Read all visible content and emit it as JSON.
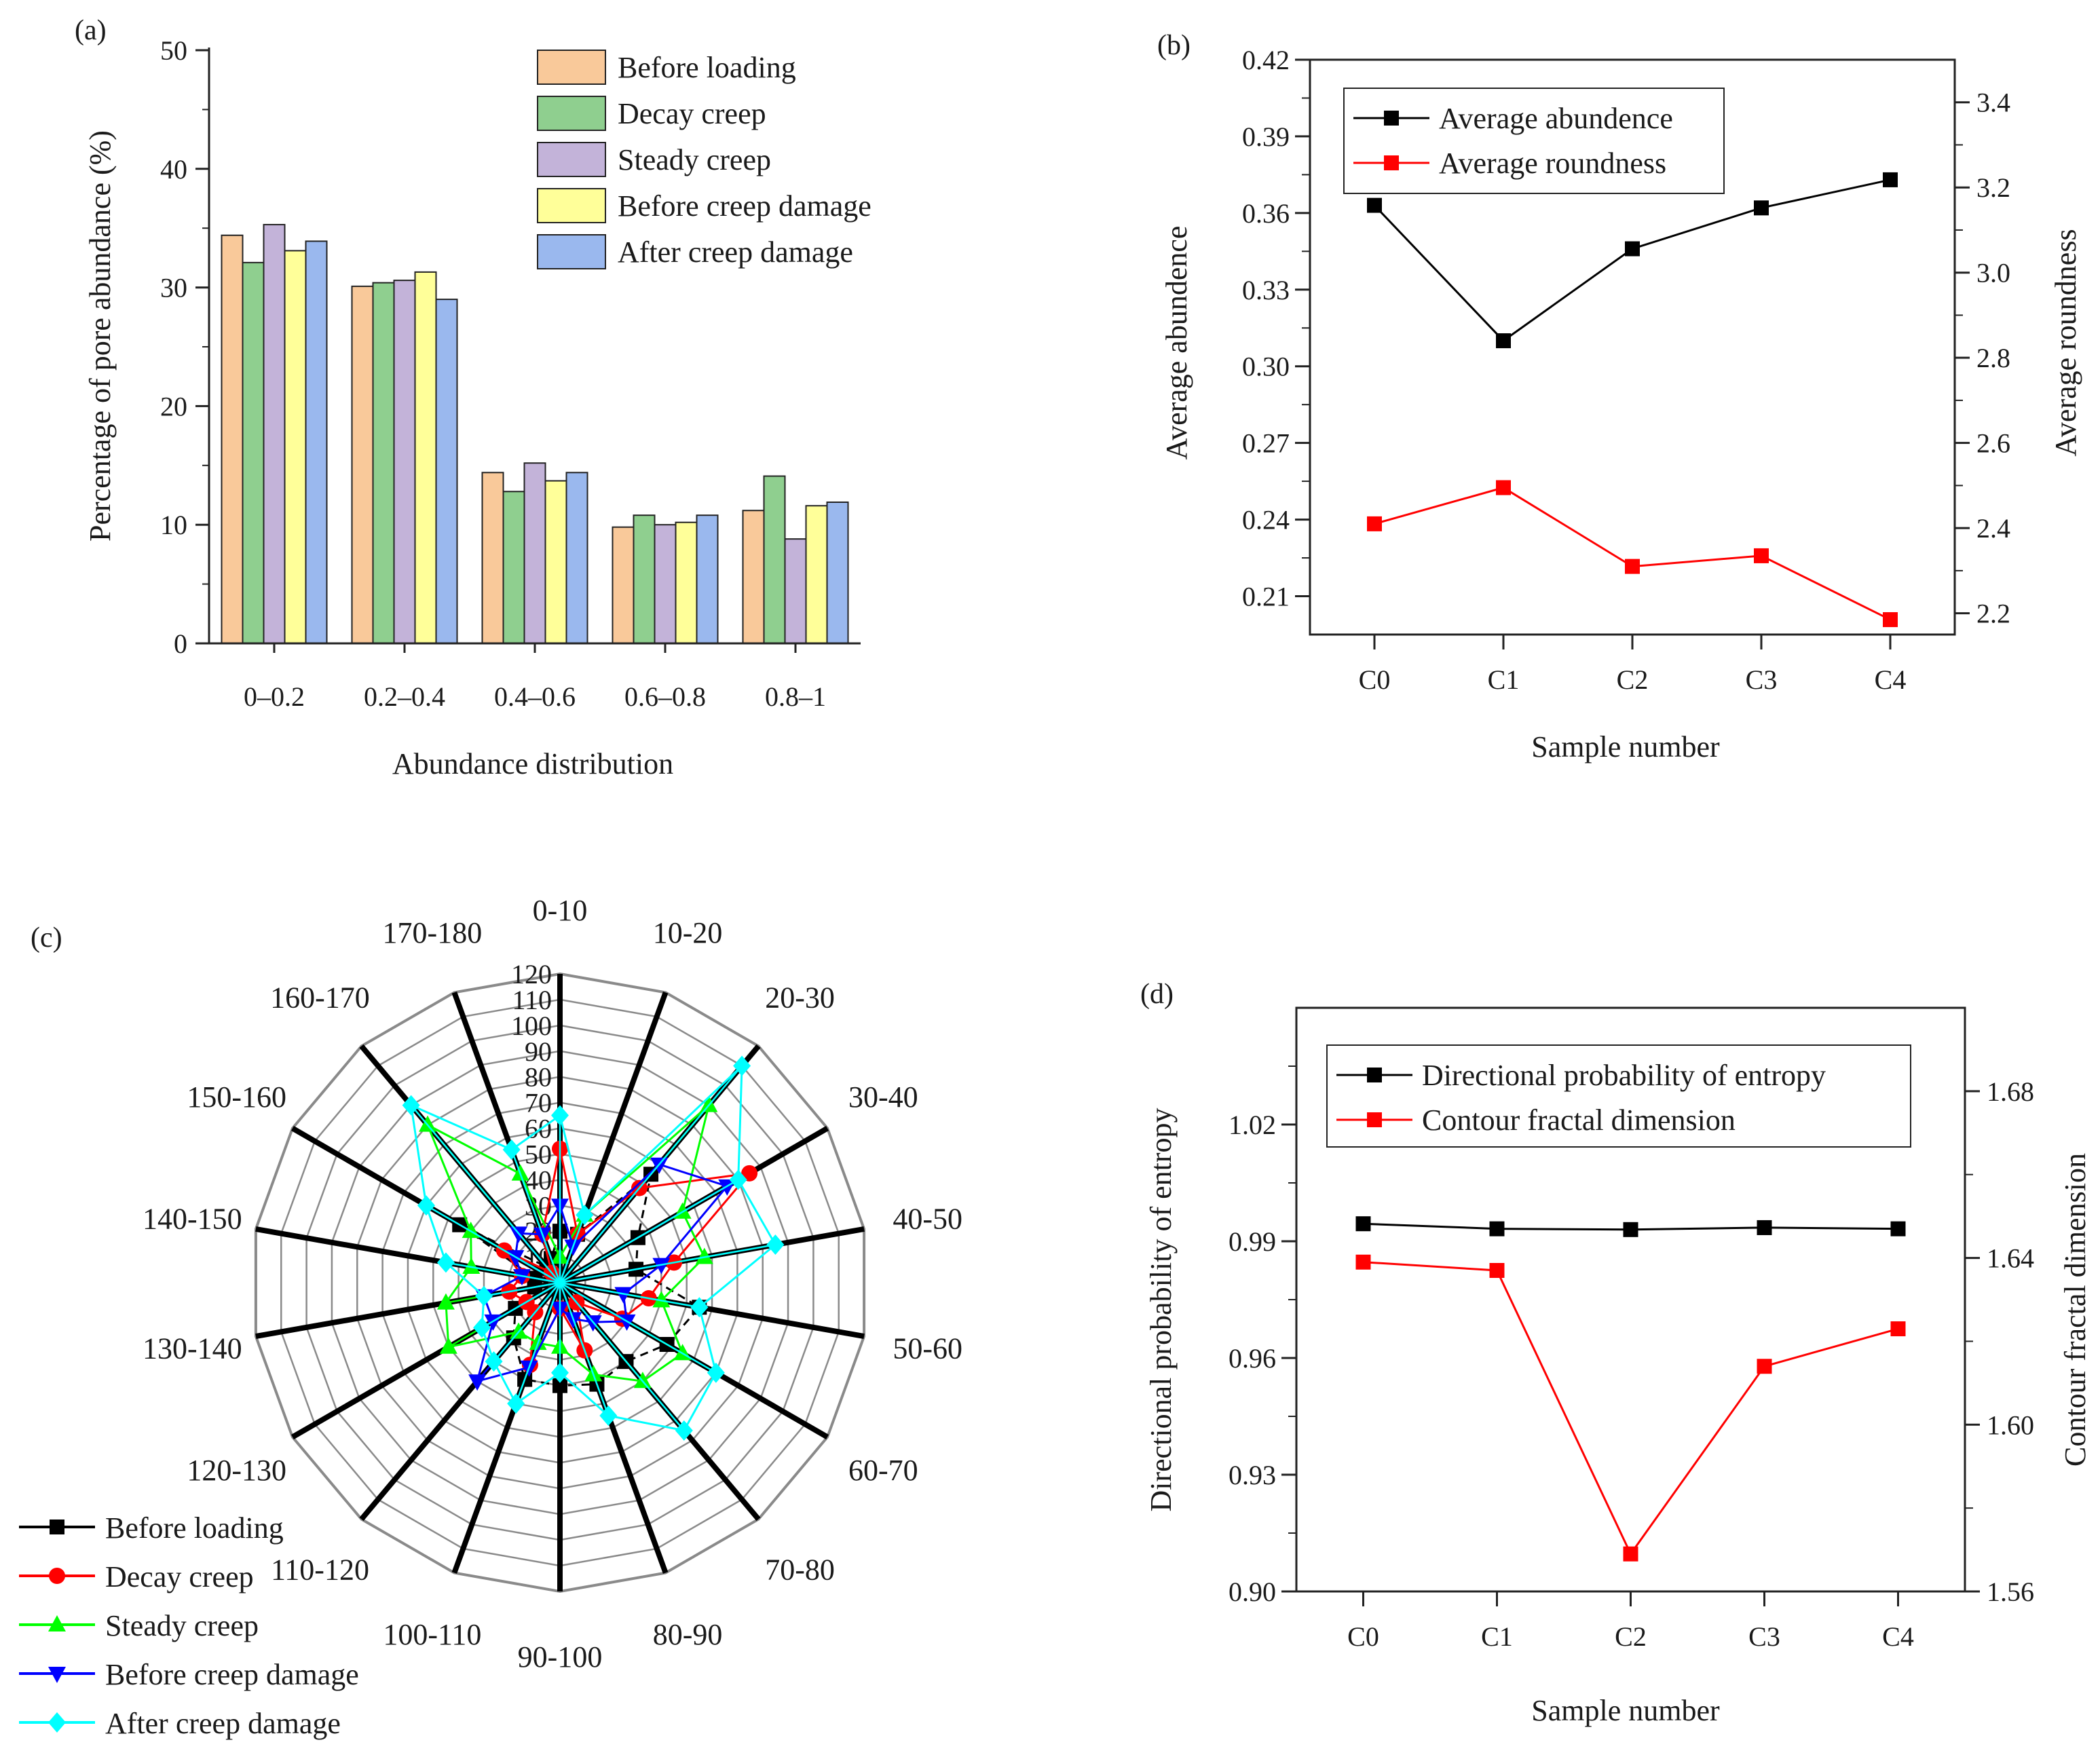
{
  "chart_data": [
    {
      "id": "a",
      "type": "bar",
      "panel_label": "(a)",
      "title": "",
      "xlabel": "Abundance distribution",
      "ylabel": "Percentage of pore abundance (%)",
      "ylim": [
        0,
        50
      ],
      "yticks": [
        0,
        10,
        20,
        30,
        40,
        50
      ],
      "categories": [
        "0–0.2",
        "0.2–0.4",
        "0.4–0.6",
        "0.6–0.8",
        "0.8–1"
      ],
      "series": [
        {
          "name": "Before loading",
          "color": "#f9c99a",
          "values": [
            34.4,
            30.1,
            14.4,
            9.8,
            11.2
          ]
        },
        {
          "name": "Decay creep",
          "color": "#8fcf8f",
          "values": [
            32.1,
            30.4,
            12.8,
            10.8,
            14.1
          ]
        },
        {
          "name": "Steady creep",
          "color": "#c3b3d9",
          "values": [
            35.3,
            30.6,
            15.2,
            10.0,
            8.8
          ]
        },
        {
          "name": "Before creep damage",
          "color": "#ffff99",
          "values": [
            33.1,
            31.3,
            13.7,
            10.2,
            11.6
          ]
        },
        {
          "name": "After creep damage",
          "color": "#9ab8ee",
          "values": [
            33.9,
            29.0,
            14.4,
            10.8,
            11.9
          ]
        }
      ],
      "legend_position": "top-right"
    },
    {
      "id": "b",
      "type": "line",
      "panel_label": "(b)",
      "xlabel": "Sample number",
      "ylabel_left": "Average abundence",
      "ylabel_right": "Average roundness",
      "categories": [
        "C0",
        "C1",
        "C2",
        "C3",
        "C4"
      ],
      "ylim_left": [
        0.195,
        0.42
      ],
      "yticks_left": [
        "0.21",
        "0.24",
        "0.27",
        "0.30",
        "0.33",
        "0.36",
        "0.39",
        "0.42"
      ],
      "ylim_right": [
        2.15,
        3.5
      ],
      "yticks_right": [
        "2.2",
        "2.4",
        "2.6",
        "2.8",
        "3.0",
        "3.2",
        "3.4"
      ],
      "series": [
        {
          "name": "Average abundence",
          "color": "#000000",
          "axis": "left",
          "values": [
            0.363,
            0.31,
            0.346,
            0.362,
            0.373
          ]
        },
        {
          "name": "Average roundness",
          "color": "#ff0000",
          "axis": "right",
          "values": [
            2.41,
            2.495,
            2.31,
            2.335,
            2.185
          ]
        }
      ],
      "legend_position": "top-left"
    },
    {
      "id": "c",
      "type": "radar",
      "panel_label": "(c)",
      "categories": [
        "0-10",
        "10-20",
        "20-30",
        "30-40",
        "40-50",
        "50-60",
        "60-70",
        "70-80",
        "80-90",
        "90-100",
        "100-110",
        "110-120",
        "120-130",
        "130-140",
        "140-150",
        "150-160",
        "160-170",
        "170-180"
      ],
      "rlim": [
        0,
        120
      ],
      "rticks": [
        0,
        10,
        20,
        30,
        40,
        50,
        60,
        70,
        80,
        90,
        100,
        110,
        120
      ],
      "series": [
        {
          "name": "Before loading",
          "color": "#000000",
          "marker": "square",
          "values": [
            20,
            20,
            55,
            35,
            30,
            55,
            48,
            40,
            42,
            40,
            40,
            28,
            20,
            10,
            10,
            45,
            8,
            10
          ]
        },
        {
          "name": "Decay creep",
          "color": "#ff0000",
          "marker": "circle",
          "values": [
            52,
            20,
            48,
            85,
            45,
            35,
            28,
            10,
            28,
            10,
            34,
            15,
            15,
            20,
            15,
            25,
            5,
            20
          ]
        },
        {
          "name": "Steady creep",
          "color": "#00ff00",
          "marker": "triangle-up",
          "values": [
            10,
            28,
            90,
            55,
            57,
            40,
            55,
            50,
            38,
            25,
            25,
            25,
            50,
            45,
            35,
            40,
            80,
            45
          ]
        },
        {
          "name": "Before creep damage",
          "color": "#0000ff",
          "marker": "triangle-down",
          "values": [
            30,
            15,
            60,
            75,
            40,
            25,
            30,
            20,
            15,
            10,
            35,
            50,
            30,
            30,
            15,
            20,
            25,
            20
          ]
        },
        {
          "name": "After creep damage",
          "color": "#00ffff",
          "marker": "diamond",
          "values": [
            65,
            28,
            110,
            80,
            85,
            55,
            70,
            75,
            55,
            35,
            50,
            40,
            35,
            30,
            45,
            60,
            90,
            55
          ]
        }
      ],
      "legend_position": "bottom-left"
    },
    {
      "id": "d",
      "type": "line",
      "panel_label": "(d)",
      "xlabel": "Sample number",
      "ylabel_left": "Directional probability of entropy",
      "ylabel_right": "Contour fractal dimension",
      "categories": [
        "C0",
        "C1",
        "C2",
        "C3",
        "C4"
      ],
      "ylim_left": [
        0.9,
        1.05
      ],
      "yticks_left": [
        "0.90",
        "0.93",
        "0.96",
        "0.99",
        "1.02"
      ],
      "ylim_right": [
        1.56,
        1.7
      ],
      "yticks_right": [
        "1.56",
        "1.60",
        "1.64",
        "1.68"
      ],
      "series": [
        {
          "name": "Directional probability of entropy",
          "color": "#000000",
          "axis": "left",
          "values": [
            0.9945,
            0.9932,
            0.993,
            0.9935,
            0.9932
          ]
        },
        {
          "name": "Contour fractal dimension",
          "color": "#ff0000",
          "axis": "right",
          "values": [
            1.639,
            1.637,
            1.569,
            1.614,
            1.623
          ]
        }
      ],
      "legend_position": "top-left"
    }
  ]
}
